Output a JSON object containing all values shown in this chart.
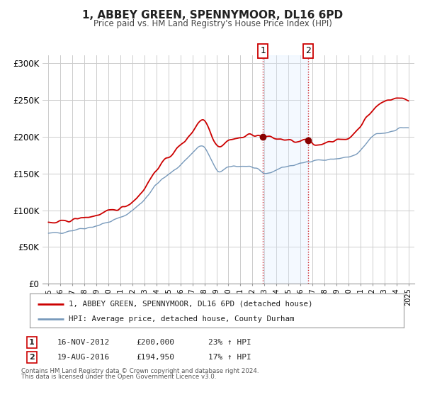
{
  "title": "1, ABBEY GREEN, SPENNYMOOR, DL16 6PD",
  "subtitle": "Price paid vs. HM Land Registry's House Price Index (HPI)",
  "legend_line1": "1, ABBEY GREEN, SPENNYMOOR, DL16 6PD (detached house)",
  "legend_line2": "HPI: Average price, detached house, County Durham",
  "footnote1": "Contains HM Land Registry data © Crown copyright and database right 2024.",
  "footnote2": "This data is licensed under the Open Government Licence v3.0.",
  "transaction1_label": "1",
  "transaction1_date": "16-NOV-2012",
  "transaction1_price": "£200,000",
  "transaction1_hpi": "23% ↑ HPI",
  "transaction2_label": "2",
  "transaction2_date": "19-AUG-2016",
  "transaction2_price": "£194,950",
  "transaction2_hpi": "17% ↑ HPI",
  "sale1_x": 2012.88,
  "sale1_y": 200000,
  "sale2_x": 2016.63,
  "sale2_y": 194950,
  "vline1_x": 2012.88,
  "vline2_x": 2016.63,
  "shade_x1": 2012.88,
  "shade_x2": 2016.63,
  "red_line_color": "#cc0000",
  "blue_line_color": "#7799bb",
  "shade_color": "#ddeeff",
  "background_color": "#ffffff",
  "grid_color": "#cccccc",
  "ylim_min": 0,
  "ylim_max": 310000,
  "xlim_min": 1994.5,
  "xlim_max": 2025.5,
  "yticks": [
    0,
    50000,
    100000,
    150000,
    200000,
    250000,
    300000
  ],
  "ytick_labels": [
    "£0",
    "£50K",
    "£100K",
    "£150K",
    "£200K",
    "£250K",
    "£300K"
  ],
  "xticks": [
    1995,
    1996,
    1997,
    1998,
    1999,
    2000,
    2001,
    2002,
    2003,
    2004,
    2005,
    2006,
    2007,
    2008,
    2009,
    2010,
    2011,
    2012,
    2013,
    2014,
    2015,
    2016,
    2017,
    2018,
    2019,
    2020,
    2021,
    2022,
    2023,
    2024,
    2025
  ]
}
